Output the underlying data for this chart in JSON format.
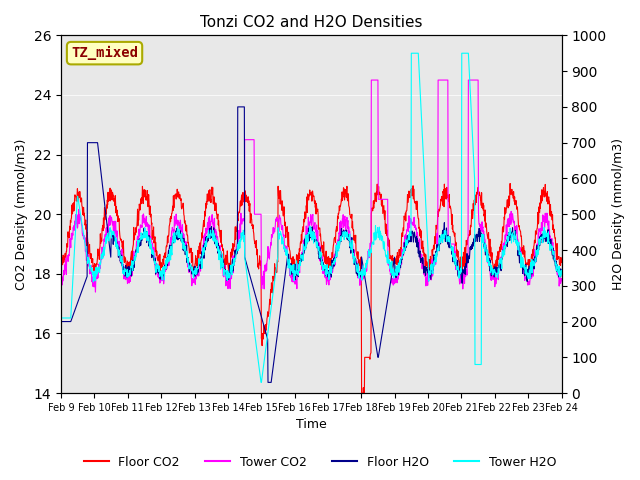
{
  "title": "Tonzi CO2 and H2O Densities",
  "xlabel": "Time",
  "ylabel_left": "CO2 Density (mmol/m3)",
  "ylabel_right": "H2O Density (mmol/m3)",
  "ylim_left": [
    14,
    26
  ],
  "ylim_right": [
    0,
    1000
  ],
  "yticks_left": [
    14,
    16,
    18,
    20,
    22,
    24,
    26
  ],
  "yticks_right": [
    0,
    100,
    200,
    300,
    400,
    500,
    600,
    700,
    800,
    900,
    1000
  ],
  "xtick_labels": [
    "Feb 9",
    "Feb 10",
    "Feb 11",
    "Feb 12",
    "Feb 13",
    "Feb 14",
    "Feb 15",
    "Feb 16",
    "Feb 17",
    "Feb 18",
    "Feb 19",
    "Feb 20",
    "Feb 21",
    "Feb 22",
    "Feb 23",
    "Feb 24"
  ],
  "annotation_text": "TZ_mixed",
  "annotation_color": "#8B0000",
  "annotation_bg": "#FFFFC0",
  "colors": {
    "floor_co2": "#FF0000",
    "tower_co2": "#FF00FF",
    "floor_h2o": "#00008B",
    "tower_h2o": "#00FFFF"
  },
  "legend_labels": [
    "Floor CO2",
    "Tower CO2",
    "Floor H2O",
    "Tower H2O"
  ],
  "background_color": "#E8E8E8",
  "n_points": 1440,
  "days": 15
}
